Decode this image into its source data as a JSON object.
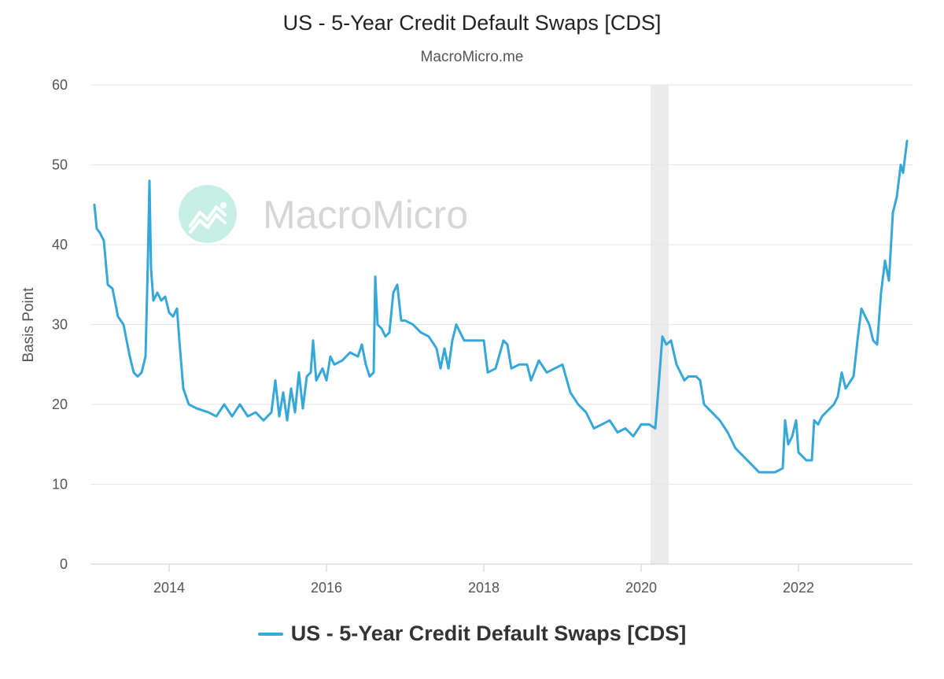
{
  "chart_data": {
    "type": "line",
    "title": "US - 5-Year Credit Default Swaps [CDS]",
    "subtitle": "MacroMicro.me",
    "watermark": "MacroMicro",
    "ylabel": "Basis Point",
    "xlabel": "",
    "ylim": [
      0,
      60
    ],
    "yticks": [
      0,
      10,
      20,
      30,
      40,
      50,
      60
    ],
    "xlim": [
      2013.0,
      2023.45
    ],
    "xticks": [
      2014,
      2016,
      2018,
      2020,
      2022
    ],
    "xtick_labels": [
      "2014",
      "2016",
      "2018",
      "2020",
      "2022"
    ],
    "shaded_region": [
      2020.12,
      2020.35
    ],
    "grid": "horizontal",
    "legend_position": "bottom-center",
    "colors": {
      "series": "#35a7d8",
      "grid": "#e6e6e6",
      "shade": "#ebebeb"
    },
    "series": [
      {
        "name": "US - 5-Year Credit Default Swaps [CDS]",
        "points": [
          [
            2013.05,
            45.0
          ],
          [
            2013.08,
            42.0
          ],
          [
            2013.12,
            41.5
          ],
          [
            2013.17,
            40.5
          ],
          [
            2013.22,
            35.0
          ],
          [
            2013.28,
            34.5
          ],
          [
            2013.35,
            31.0
          ],
          [
            2013.42,
            30.0
          ],
          [
            2013.5,
            26.0
          ],
          [
            2013.55,
            24.0
          ],
          [
            2013.6,
            23.5
          ],
          [
            2013.65,
            24.0
          ],
          [
            2013.7,
            26.0
          ],
          [
            2013.73,
            38.0
          ],
          [
            2013.75,
            48.0
          ],
          [
            2013.77,
            37.0
          ],
          [
            2013.8,
            33.0
          ],
          [
            2013.85,
            34.0
          ],
          [
            2013.9,
            33.0
          ],
          [
            2013.95,
            33.5
          ],
          [
            2014.0,
            31.5
          ],
          [
            2014.05,
            31.0
          ],
          [
            2014.1,
            32.0
          ],
          [
            2014.13,
            28.0
          ],
          [
            2014.18,
            22.0
          ],
          [
            2014.25,
            20.0
          ],
          [
            2014.35,
            19.5
          ],
          [
            2014.5,
            19.0
          ],
          [
            2014.6,
            18.5
          ],
          [
            2014.7,
            20.0
          ],
          [
            2014.8,
            18.5
          ],
          [
            2014.9,
            20.0
          ],
          [
            2015.0,
            18.5
          ],
          [
            2015.1,
            19.0
          ],
          [
            2015.2,
            18.0
          ],
          [
            2015.3,
            19.0
          ],
          [
            2015.35,
            23.0
          ],
          [
            2015.4,
            18.5
          ],
          [
            2015.45,
            21.5
          ],
          [
            2015.5,
            18.0
          ],
          [
            2015.55,
            22.0
          ],
          [
            2015.6,
            19.0
          ],
          [
            2015.65,
            24.0
          ],
          [
            2015.7,
            19.5
          ],
          [
            2015.75,
            23.5
          ],
          [
            2015.8,
            24.0
          ],
          [
            2015.83,
            28.0
          ],
          [
            2015.87,
            23.0
          ],
          [
            2015.95,
            24.5
          ],
          [
            2016.0,
            23.0
          ],
          [
            2016.05,
            26.0
          ],
          [
            2016.1,
            25.0
          ],
          [
            2016.2,
            25.5
          ],
          [
            2016.3,
            26.5
          ],
          [
            2016.4,
            26.0
          ],
          [
            2016.45,
            27.5
          ],
          [
            2016.5,
            25.0
          ],
          [
            2016.55,
            23.5
          ],
          [
            2016.6,
            24.0
          ],
          [
            2016.62,
            36.0
          ],
          [
            2016.65,
            30.0
          ],
          [
            2016.7,
            29.5
          ],
          [
            2016.75,
            28.5
          ],
          [
            2016.8,
            29.0
          ],
          [
            2016.85,
            34.0
          ],
          [
            2016.9,
            35.0
          ],
          [
            2016.95,
            30.5
          ],
          [
            2017.0,
            30.5
          ],
          [
            2017.1,
            30.0
          ],
          [
            2017.2,
            29.0
          ],
          [
            2017.3,
            28.5
          ],
          [
            2017.4,
            27.0
          ],
          [
            2017.45,
            24.5
          ],
          [
            2017.5,
            27.0
          ],
          [
            2017.55,
            24.5
          ],
          [
            2017.6,
            28.0
          ],
          [
            2017.65,
            30.0
          ],
          [
            2017.75,
            28.0
          ],
          [
            2017.85,
            28.0
          ],
          [
            2018.0,
            28.0
          ],
          [
            2018.05,
            24.0
          ],
          [
            2018.15,
            24.5
          ],
          [
            2018.25,
            28.0
          ],
          [
            2018.3,
            27.5
          ],
          [
            2018.35,
            24.5
          ],
          [
            2018.45,
            25.0
          ],
          [
            2018.55,
            25.0
          ],
          [
            2018.6,
            23.0
          ],
          [
            2018.7,
            25.5
          ],
          [
            2018.8,
            24.0
          ],
          [
            2018.9,
            24.5
          ],
          [
            2019.0,
            25.0
          ],
          [
            2019.1,
            21.5
          ],
          [
            2019.2,
            20.0
          ],
          [
            2019.3,
            19.0
          ],
          [
            2019.4,
            17.0
          ],
          [
            2019.5,
            17.5
          ],
          [
            2019.6,
            18.0
          ],
          [
            2019.7,
            16.5
          ],
          [
            2019.8,
            17.0
          ],
          [
            2019.9,
            16.0
          ],
          [
            2020.0,
            17.5
          ],
          [
            2020.1,
            17.5
          ],
          [
            2020.18,
            17.0
          ],
          [
            2020.22,
            22.0
          ],
          [
            2020.27,
            28.5
          ],
          [
            2020.32,
            27.5
          ],
          [
            2020.38,
            28.0
          ],
          [
            2020.45,
            25.0
          ],
          [
            2020.5,
            24.0
          ],
          [
            2020.55,
            23.0
          ],
          [
            2020.6,
            23.5
          ],
          [
            2020.7,
            23.5
          ],
          [
            2020.75,
            23.0
          ],
          [
            2020.8,
            20.0
          ],
          [
            2020.9,
            19.0
          ],
          [
            2021.0,
            18.0
          ],
          [
            2021.1,
            16.5
          ],
          [
            2021.2,
            14.5
          ],
          [
            2021.3,
            13.5
          ],
          [
            2021.4,
            12.5
          ],
          [
            2021.5,
            11.5
          ],
          [
            2021.6,
            11.5
          ],
          [
            2021.7,
            11.5
          ],
          [
            2021.8,
            12.0
          ],
          [
            2021.83,
            18.0
          ],
          [
            2021.87,
            15.0
          ],
          [
            2021.92,
            16.0
          ],
          [
            2021.97,
            18.0
          ],
          [
            2022.0,
            14.0
          ],
          [
            2022.05,
            13.5
          ],
          [
            2022.1,
            13.0
          ],
          [
            2022.17,
            13.0
          ],
          [
            2022.2,
            18.0
          ],
          [
            2022.25,
            17.5
          ],
          [
            2022.3,
            18.5
          ],
          [
            2022.4,
            19.5
          ],
          [
            2022.45,
            20.0
          ],
          [
            2022.5,
            21.0
          ],
          [
            2022.55,
            24.0
          ],
          [
            2022.6,
            22.0
          ],
          [
            2022.7,
            23.5
          ],
          [
            2022.75,
            28.0
          ],
          [
            2022.8,
            32.0
          ],
          [
            2022.85,
            31.0
          ],
          [
            2022.9,
            30.0
          ],
          [
            2022.95,
            28.0
          ],
          [
            2023.0,
            27.5
          ],
          [
            2023.05,
            34.0
          ],
          [
            2023.1,
            38.0
          ],
          [
            2023.15,
            35.5
          ],
          [
            2023.2,
            44.0
          ],
          [
            2023.25,
            46.0
          ],
          [
            2023.3,
            50.0
          ],
          [
            2023.33,
            49.0
          ],
          [
            2023.38,
            53.0
          ]
        ]
      }
    ]
  }
}
